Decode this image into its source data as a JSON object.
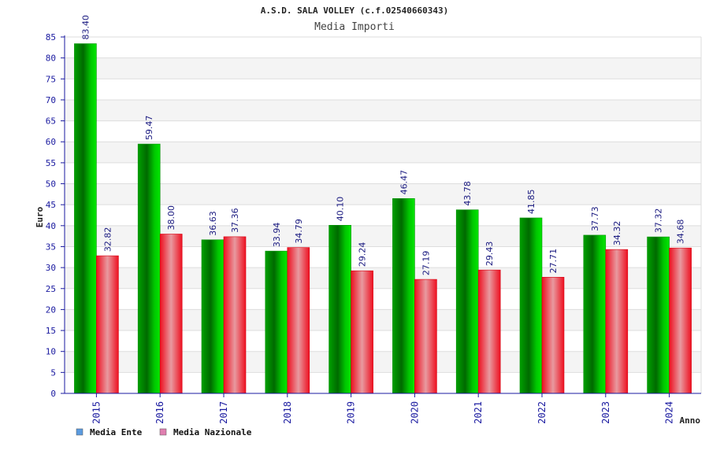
{
  "chart_data": {
    "type": "bar",
    "title": "A.S.D. SALA VOLLEY (c.f.02540660343)",
    "subtitle": "Media Importi",
    "xlabel": "Anno",
    "ylabel": "Euro",
    "ylim": [
      0,
      85
    ],
    "ytick_step": 5,
    "grid": true,
    "legend_position": "bottom-left",
    "categories": [
      "2015",
      "2016",
      "2017",
      "2018",
      "2019",
      "2020",
      "2021",
      "2022",
      "2023",
      "2024"
    ],
    "series": [
      {
        "name": "Media Ente",
        "color": "#00aa00",
        "legend_color": "#5b9be0",
        "values": [
          83.4,
          59.47,
          36.63,
          33.94,
          40.1,
          46.47,
          43.78,
          41.85,
          37.73,
          37.32
        ],
        "labels": [
          "83.40",
          "59.47",
          "36.63",
          "33.94",
          "40.10",
          "46.47",
          "43.78",
          "41.85",
          "37.73",
          "37.32"
        ]
      },
      {
        "name": "Media Nazionale",
        "color": "#e8101e",
        "legend_color": "#e07fb0",
        "values": [
          32.82,
          38.0,
          37.36,
          34.79,
          29.24,
          27.19,
          29.43,
          27.71,
          34.32,
          34.68
        ],
        "labels": [
          "32.82",
          "38.00",
          "37.36",
          "34.79",
          "29.24",
          "27.19",
          "29.43",
          "27.71",
          "34.32",
          "34.68"
        ]
      }
    ]
  }
}
